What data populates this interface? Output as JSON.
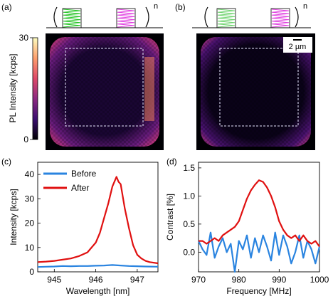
{
  "figure": {
    "panel_labels": [
      "(a)",
      "(b)",
      "(c)",
      "(d)"
    ],
    "pulse_exponent": "n",
    "colorbar": {
      "label": "PL Intensity [kcps]",
      "ticks": [
        "30",
        "0"
      ],
      "range": [
        0,
        30
      ],
      "colormap": [
        "#000004",
        "#3b0f70",
        "#8c2981",
        "#de4968",
        "#fe9f6d",
        "#fcfdbf"
      ]
    },
    "scale_bar_label": "2 µm",
    "pulse_colors": {
      "panel_a": "#22c322",
      "panel_b": "#6fd36f",
      "magenta": "#e040e0"
    },
    "colors": {
      "before": "#2a84e0",
      "after": "#e01010"
    }
  },
  "chart_data": [
    {
      "panel": "(a)",
      "type": "heatmap",
      "title": "",
      "description_values": {
        "min": 0,
        "max": 30,
        "unit": "kcps"
      },
      "grid": false
    },
    {
      "panel": "(b)",
      "type": "heatmap",
      "title": "",
      "description_values": {
        "min": 0,
        "max": 30,
        "unit": "kcps"
      },
      "grid": false
    },
    {
      "panel": "(c)",
      "type": "line",
      "title": "",
      "xlabel": "Wavelength [nm]",
      "ylabel": "Intensity [kcps]",
      "xlim": [
        944.6,
        947.5
      ],
      "ylim": [
        0,
        45
      ],
      "xticks": [
        945,
        946,
        947
      ],
      "yticks": [
        0,
        10,
        20,
        30,
        40
      ],
      "legend": "top-left",
      "grid": false,
      "series": [
        {
          "name": "Before",
          "x": [
            944.6,
            944.8,
            945.0,
            945.2,
            945.4,
            945.6,
            945.8,
            946.0,
            946.2,
            946.4,
            946.6,
            946.8,
            947.0,
            947.2,
            947.5
          ],
          "y": [
            2.0,
            2.1,
            2.2,
            2.4,
            2.3,
            2.4,
            2.4,
            2.5,
            2.6,
            2.8,
            2.6,
            2.4,
            2.3,
            2.2,
            2.1
          ]
        },
        {
          "name": "After",
          "x": [
            944.6,
            944.8,
            945.0,
            945.2,
            945.4,
            945.6,
            945.8,
            946.0,
            946.1,
            946.2,
            946.3,
            946.4,
            946.5,
            946.55,
            946.6,
            946.7,
            946.8,
            946.9,
            947.0,
            947.1,
            947.2,
            947.3,
            947.5
          ],
          "y": [
            4.0,
            4.2,
            4.5,
            5.0,
            5.5,
            6.5,
            8.0,
            12.0,
            16.0,
            22.0,
            28.0,
            35.0,
            39.0,
            37.0,
            36.0,
            26.0,
            18.0,
            11.0,
            7.0,
            5.5,
            4.5,
            4.0,
            3.5
          ]
        }
      ]
    },
    {
      "panel": "(d)",
      "type": "line",
      "title": "",
      "xlabel": "Frequency [MHz]",
      "ylabel": "Contrast [%]",
      "xlim": [
        970,
        1000
      ],
      "ylim": [
        -0.35,
        1.6
      ],
      "xticks": [
        970,
        980,
        990,
        1000
      ],
      "yticks": [
        0.0,
        0.5,
        1.0,
        1.5
      ],
      "grid": false,
      "series": [
        {
          "name": "Before",
          "x": [
            970,
            971,
            972,
            973,
            974,
            975,
            976,
            977,
            978,
            979,
            980,
            981,
            982,
            983,
            984,
            985,
            986,
            987,
            988,
            989,
            990,
            991,
            992,
            993,
            994,
            995,
            996,
            997,
            998,
            999,
            1000
          ],
          "y": [
            0.2,
            0.05,
            -0.05,
            0.35,
            -0.1,
            0.1,
            0.25,
            0.0,
            0.15,
            -0.35,
            0.2,
            0.05,
            0.3,
            -0.1,
            0.25,
            0.0,
            0.3,
            0.1,
            -0.15,
            0.35,
            -0.05,
            0.3,
            0.1,
            -0.2,
            0.0,
            0.3,
            -0.1,
            0.2,
            0.05,
            -0.2,
            0.1
          ]
        },
        {
          "name": "After",
          "x": [
            970,
            971,
            972,
            973,
            974,
            975,
            976,
            977,
            978,
            979,
            980,
            981,
            982,
            983,
            984,
            985,
            986,
            987,
            988,
            989,
            990,
            991,
            992,
            993,
            994,
            995,
            996,
            997,
            998,
            999,
            1000
          ],
          "y": [
            0.2,
            0.2,
            0.15,
            0.2,
            0.25,
            0.2,
            0.3,
            0.35,
            0.4,
            0.45,
            0.55,
            0.75,
            0.95,
            1.1,
            1.2,
            1.28,
            1.25,
            1.15,
            1.0,
            0.8,
            0.55,
            0.4,
            0.3,
            0.25,
            0.3,
            0.2,
            0.3,
            0.2,
            0.15,
            0.2,
            0.1
          ]
        }
      ]
    }
  ]
}
